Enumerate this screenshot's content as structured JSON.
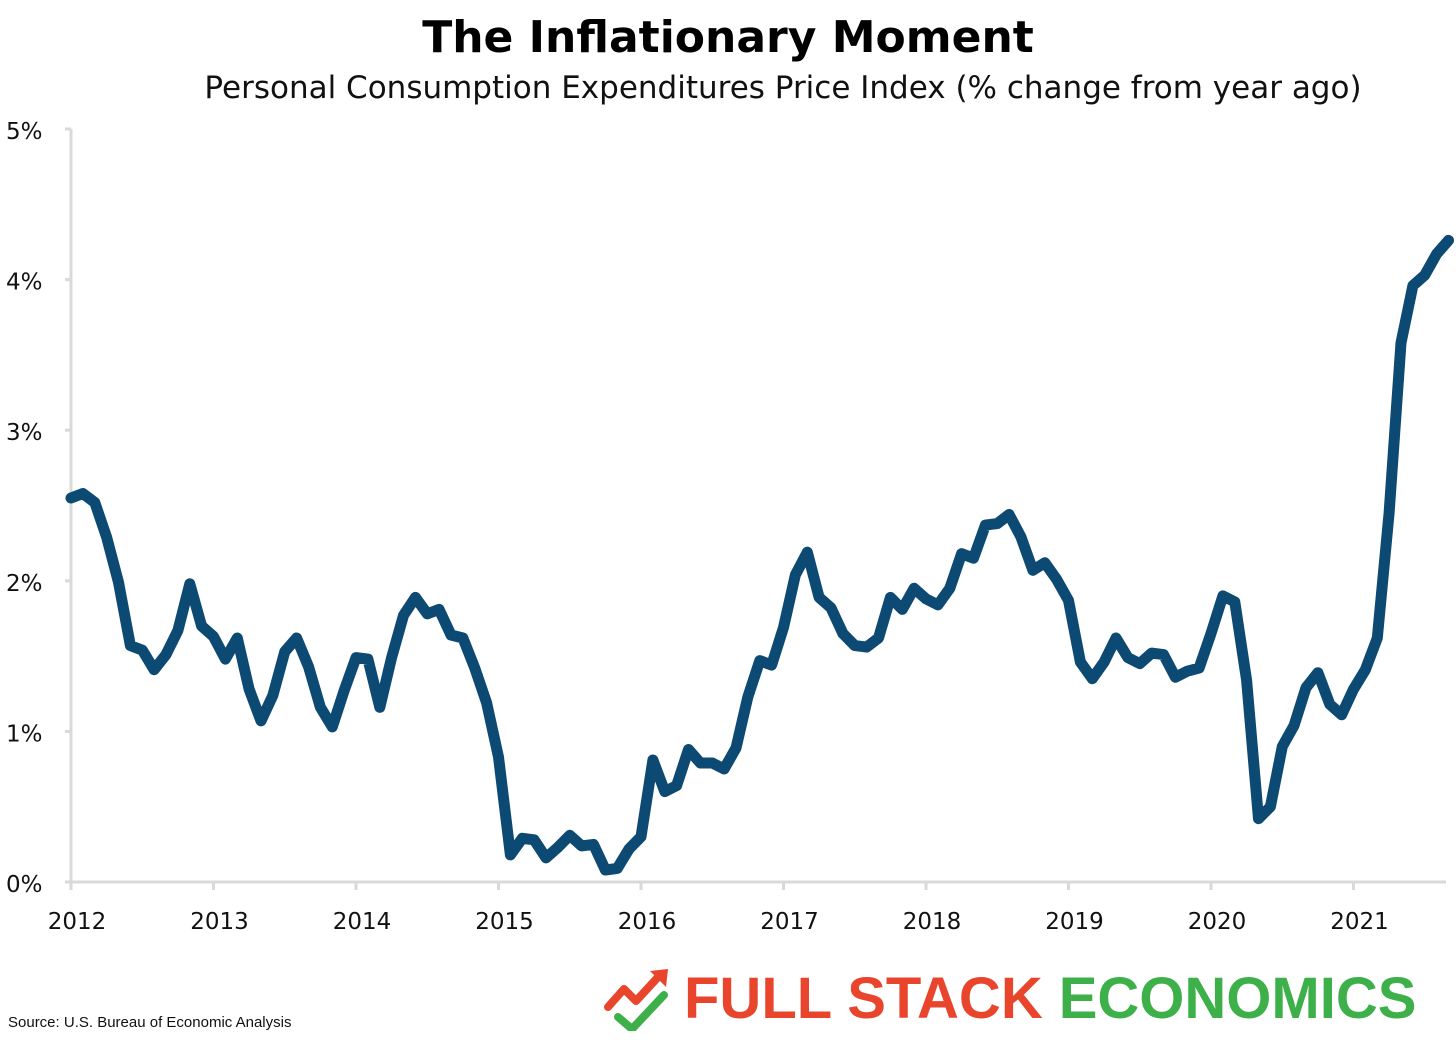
{
  "header": {
    "title": "The Inflationary Moment",
    "subtitle": "Personal Consumption Expenditures Price Index (% change from year ago)"
  },
  "footer": {
    "source": "Source: U.S. Bureau of Economic Analysis",
    "logo_icon": "chart-arrow-checkmark-icon",
    "logo_word_1": "FULL STACK",
    "logo_word_2": "ECONOMICS",
    "logo_colors": {
      "full_stack": "#e8452c",
      "economics": "#3db049"
    }
  },
  "chart_data": {
    "type": "line",
    "title": "The Inflationary Moment",
    "subtitle": "Personal Consumption Expenditures Price Index (% change from year ago)",
    "xlabel": "",
    "ylabel": "",
    "x_tick_labels": [
      "2012",
      "2013",
      "2014",
      "2015",
      "2016",
      "2017",
      "2018",
      "2019",
      "2020",
      "2021"
    ],
    "y_tick_labels": [
      "0%",
      "1%",
      "2%",
      "3%",
      "4%",
      "5%"
    ],
    "y_ticks": [
      0,
      1,
      2,
      3,
      4,
      5
    ],
    "ylim": [
      0,
      5
    ],
    "x_start": "2012-01",
    "x_end": "2021-08",
    "grid": false,
    "line_color": "#0c4a73",
    "axis_color": "#d9d9d9",
    "series": [
      {
        "values": [
          2.55,
          2.58,
          2.52,
          2.29,
          1.99,
          1.57,
          1.54,
          1.41,
          1.51,
          1.67,
          1.98,
          1.7,
          1.63,
          1.48,
          1.62,
          1.28,
          1.07,
          1.24,
          1.53,
          1.62,
          1.43,
          1.16,
          1.03,
          1.27,
          1.49,
          1.48,
          1.16,
          1.49,
          1.77,
          1.89,
          1.78,
          1.81,
          1.64,
          1.62,
          1.42,
          1.19,
          0.83,
          0.18,
          0.29,
          0.28,
          0.16,
          0.23,
          0.31,
          0.24,
          0.25,
          0.08,
          0.09,
          0.22,
          0.3,
          0.81,
          0.6,
          0.64,
          0.88,
          0.79,
          0.79,
          0.75,
          0.89,
          1.23,
          1.47,
          1.44,
          1.69,
          2.04,
          2.19,
          1.89,
          1.82,
          1.65,
          1.57,
          1.56,
          1.62,
          1.89,
          1.81,
          1.95,
          1.88,
          1.84,
          1.95,
          2.18,
          2.15,
          2.37,
          2.38,
          2.44,
          2.29,
          2.07,
          2.12,
          2.01,
          1.87,
          1.46,
          1.35,
          1.46,
          1.62,
          1.49,
          1.45,
          1.52,
          1.51,
          1.36,
          1.4,
          1.42,
          1.65,
          1.9,
          1.86,
          1.34,
          0.42,
          0.5,
          0.9,
          1.04,
          1.29,
          1.39,
          1.18,
          1.11,
          1.28,
          1.41,
          1.62,
          2.45,
          3.58,
          3.96,
          4.03,
          4.17,
          4.26
        ]
      }
    ]
  }
}
